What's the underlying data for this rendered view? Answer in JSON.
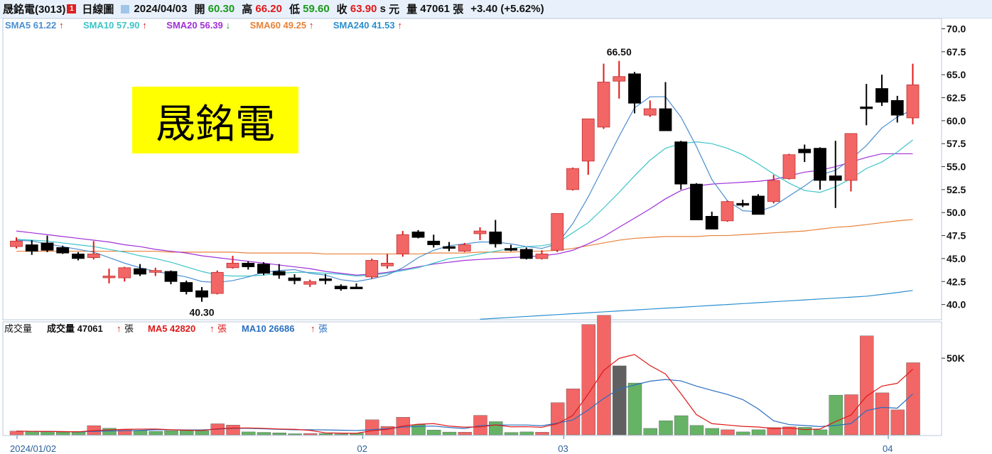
{
  "header": {
    "stock_name": "晟銘電(3013)",
    "badge": "1",
    "chart_kind": "日線圖",
    "date": "2024/04/03",
    "open_label": "開",
    "open": "60.30",
    "high_label": "高",
    "high": "66.20",
    "low_label": "低",
    "low": "59.60",
    "close_label": "收",
    "close": "63.90",
    "flag": "s",
    "currency": "元",
    "volume_label": "量",
    "volume": "47061",
    "volume_unit": "張",
    "change": "+3.40 (+5.62%)"
  },
  "watermark": "晟銘電",
  "colors": {
    "up": "#f26666",
    "down": "#000000",
    "sma5": "#4b8fd0",
    "sma10": "#3cc4c8",
    "sma20": "#a030d8",
    "sma60": "#e8823a",
    "sma240": "#2a8fd0",
    "vol_up": "#f26666",
    "vol_down": "#66b366",
    "vol_ma5": "#e01818",
    "vol_ma10": "#2a6fc0",
    "watermark_bg": "#ffff00"
  },
  "legend": [
    {
      "label": "SMA5 61.22",
      "arrow": "↑",
      "color": "#4b8fd0"
    },
    {
      "label": "SMA10 57.90",
      "arrow": "↑",
      "color": "#3cc4c8"
    },
    {
      "label": "SMA20 56.39",
      "arrow": "↓",
      "color": "#a030d8"
    },
    {
      "label": "SMA60 49.25",
      "arrow": "↑",
      "color": "#e8823a"
    },
    {
      "label": "SMA240 41.53",
      "arrow": "↑",
      "color": "#2a8fd0"
    }
  ],
  "volume_legend": {
    "title": "成交量",
    "vol": "成交量 47061",
    "vol_unit": "張",
    "ma5": "MA5 42820",
    "ma5_unit": "張",
    "ma10": "MA10 26686",
    "ma10_unit": "張",
    "arrow": "↑"
  },
  "chart_data": {
    "type": "candlestick",
    "ylim": [
      38.5,
      70.5
    ],
    "yticks": [
      "70.0",
      "67.5",
      "65.0",
      "62.5",
      "60.0",
      "57.5",
      "55.0",
      "52.5",
      "50.0",
      "47.5",
      "45.0",
      "42.5",
      "40.0"
    ],
    "x_labels": [
      {
        "label": "2024/01/02",
        "index": 0
      },
      {
        "label": "02",
        "index": 22
      },
      {
        "label": "03",
        "index": 35
      },
      {
        "label": "04",
        "index": 56
      }
    ],
    "annotations": [
      {
        "text": "66.50",
        "index": 39
      },
      {
        "text": "40.30",
        "index": 12
      }
    ],
    "volume_ylim": [
      0,
      70000
    ],
    "volume_ticks": [
      "50K"
    ],
    "candles": [
      [
        46.3,
        47.3,
        46.1,
        46.9
      ],
      [
        46.5,
        47.0,
        45.4,
        45.8
      ],
      [
        46.7,
        47.5,
        45.7,
        45.9
      ],
      [
        46.2,
        46.4,
        45.5,
        45.6
      ],
      [
        45.5,
        45.7,
        44.8,
        45.0
      ],
      [
        45.1,
        46.9,
        44.9,
        45.5
      ],
      [
        43.0,
        43.9,
        42.3,
        43.1
      ],
      [
        42.9,
        44.1,
        42.5,
        44.0
      ],
      [
        43.9,
        44.4,
        43.1,
        43.3
      ],
      [
        43.5,
        44.0,
        43.1,
        43.7
      ],
      [
        43.6,
        43.7,
        42.2,
        42.5
      ],
      [
        42.4,
        42.6,
        41.1,
        41.4
      ],
      [
        41.5,
        41.9,
        40.3,
        40.8
      ],
      [
        41.2,
        43.7,
        41.1,
        43.5
      ],
      [
        44.0,
        45.3,
        43.9,
        44.5
      ],
      [
        44.5,
        44.7,
        43.8,
        44.1
      ],
      [
        44.4,
        44.6,
        43.2,
        43.4
      ],
      [
        43.6,
        44.4,
        42.8,
        43.2
      ],
      [
        42.9,
        43.3,
        42.2,
        42.6
      ],
      [
        42.2,
        42.7,
        41.9,
        42.5
      ],
      [
        42.8,
        43.3,
        42.2,
        42.6
      ],
      [
        42.0,
        42.2,
        41.5,
        41.7
      ],
      [
        41.9,
        42.3,
        41.7,
        41.8
      ],
      [
        43.0,
        45.0,
        42.8,
        44.8
      ],
      [
        44.2,
        45.5,
        43.9,
        44.5
      ],
      [
        45.5,
        48.0,
        45.2,
        47.6
      ],
      [
        47.9,
        48.1,
        47.2,
        47.3
      ],
      [
        46.9,
        47.6,
        46.2,
        46.5
      ],
      [
        46.3,
        46.8,
        45.8,
        46.2
      ],
      [
        45.8,
        46.7,
        45.7,
        46.5
      ],
      [
        47.7,
        48.4,
        47.0,
        48.0
      ],
      [
        47.9,
        49.2,
        46.2,
        46.6
      ],
      [
        46.1,
        46.5,
        45.8,
        45.9
      ],
      [
        46.0,
        46.2,
        44.9,
        45.0
      ],
      [
        45.0,
        45.9,
        44.9,
        45.5
      ],
      [
        45.9,
        49.9,
        45.7,
        49.9
      ],
      [
        52.5,
        54.9,
        52.4,
        54.8
      ],
      [
        55.6,
        60.2,
        54.1,
        60.2
      ],
      [
        59.3,
        66.2,
        59.1,
        64.2
      ],
      [
        64.3,
        66.5,
        62.4,
        64.8
      ],
      [
        65.1,
        65.3,
        60.8,
        61.9
      ],
      [
        60.6,
        62.2,
        60.4,
        61.3
      ],
      [
        61.3,
        64.2,
        58.9,
        58.9
      ],
      [
        57.7,
        57.8,
        52.5,
        53.1
      ],
      [
        53.1,
        53.2,
        49.2,
        49.2
      ],
      [
        49.6,
        50.1,
        48.3,
        48.2
      ],
      [
        49.1,
        51.3,
        49.0,
        51.2
      ],
      [
        51.0,
        51.4,
        50.6,
        50.8
      ],
      [
        51.8,
        52.0,
        49.8,
        49.8
      ],
      [
        51.2,
        54.1,
        51.0,
        53.5
      ],
      [
        53.7,
        56.4,
        53.6,
        56.3
      ],
      [
        56.9,
        57.4,
        55.5,
        56.5
      ],
      [
        57.0,
        57.1,
        52.5,
        53.5
      ],
      [
        54.0,
        57.8,
        50.5,
        53.5
      ],
      [
        53.5,
        58.6,
        52.3,
        58.6
      ],
      [
        61.5,
        64.0,
        59.5,
        61.4
      ],
      [
        63.5,
        65.0,
        61.6,
        62.0
      ],
      [
        62.2,
        62.7,
        59.8,
        60.6
      ],
      [
        60.3,
        66.2,
        59.6,
        63.9
      ]
    ],
    "volume": [
      2400,
      2200,
      2000,
      1800,
      1700,
      6000,
      4300,
      3600,
      2600,
      2300,
      2700,
      2800,
      2700,
      7200,
      6400,
      1900,
      1600,
      1300,
      700,
      900,
      900,
      600,
      1100,
      9800,
      5500,
      11500,
      6600,
      3100,
      1800,
      1700,
      12700,
      8600,
      1500,
      1900,
      1700,
      21000,
      30000,
      72000,
      78000,
      45000,
      33800,
      4200,
      9200,
      12500,
      6100,
      4200,
      3300,
      1900,
      3300,
      4700,
      5200,
      4900,
      3300,
      25900,
      26200,
      64600,
      27400,
      16300,
      47061
    ],
    "volume_up": [
      true,
      false,
      false,
      false,
      false,
      true,
      false,
      true,
      false,
      false,
      false,
      false,
      false,
      true,
      true,
      false,
      false,
      false,
      false,
      true,
      false,
      false,
      false,
      true,
      true,
      true,
      false,
      false,
      false,
      true,
      true,
      false,
      false,
      false,
      true,
      true,
      true,
      true,
      true,
      false,
      false,
      false,
      false,
      false,
      false,
      false,
      true,
      false,
      false,
      true,
      true,
      false,
      false,
      false,
      true,
      true,
      true,
      true,
      true
    ],
    "volume_neutral_index": 39,
    "sma": {
      "sma5": [
        47.0,
        46.9,
        46.6,
        46.3,
        46.0,
        45.7,
        45.1,
        44.5,
        44.0,
        43.6,
        43.3,
        43.0,
        42.5,
        42.4,
        42.6,
        43.0,
        43.5,
        43.7,
        43.8,
        43.4,
        43.2,
        42.7,
        42.5,
        42.8,
        43.2,
        44.0,
        45.1,
        45.9,
        46.4,
        46.6,
        46.8,
        46.8,
        46.6,
        46.3,
        46.1,
        46.6,
        48.8,
        51.7,
        55.0,
        58.3,
        61.4,
        62.6,
        62.6,
        60.4,
        57.2,
        53.6,
        51.3,
        50.2,
        50.1,
        50.7,
        51.8,
        52.9,
        54.1,
        54.6,
        55.8,
        57.3,
        59.2,
        60.4,
        61.2
      ],
      "sma10": [
        47.1,
        47.0,
        46.9,
        46.7,
        46.5,
        46.3,
        46.0,
        45.7,
        45.3,
        45.0,
        44.6,
        44.1,
        43.6,
        43.2,
        43.1,
        43.1,
        43.2,
        43.4,
        43.5,
        43.5,
        43.4,
        43.3,
        43.1,
        43.2,
        43.4,
        43.7,
        44.0,
        44.5,
        45.0,
        45.2,
        45.5,
        45.8,
        46.1,
        46.3,
        46.4,
        46.7,
        47.8,
        48.9,
        50.5,
        52.2,
        54.0,
        55.7,
        57.0,
        57.5,
        57.7,
        57.5,
        57.0,
        56.3,
        55.3,
        54.2,
        53.2,
        52.4,
        52.2,
        52.8,
        53.7,
        54.8,
        55.5,
        56.6,
        57.9
      ],
      "sma20": [
        48.0,
        47.8,
        47.6,
        47.4,
        47.2,
        47.0,
        46.8,
        46.5,
        46.3,
        46.0,
        45.8,
        45.6,
        45.3,
        45.1,
        44.9,
        44.7,
        44.5,
        44.3,
        44.1,
        43.9,
        43.6,
        43.4,
        43.2,
        43.3,
        43.5,
        43.8,
        44.1,
        44.4,
        44.6,
        44.8,
        44.9,
        45.0,
        45.1,
        45.2,
        45.3,
        45.5,
        45.9,
        46.6,
        47.4,
        48.4,
        49.4,
        50.4,
        51.5,
        52.4,
        52.9,
        53.1,
        53.2,
        53.3,
        53.4,
        53.6,
        54.0,
        54.4,
        54.6,
        55.0,
        55.5,
        56.0,
        56.4,
        56.4,
        56.4
      ],
      "sma60": [
        45.8,
        45.8,
        45.8,
        45.8,
        45.8,
        45.8,
        45.8,
        45.8,
        45.8,
        45.8,
        45.7,
        45.7,
        45.7,
        45.7,
        45.7,
        45.6,
        45.6,
        45.6,
        45.6,
        45.6,
        45.5,
        45.5,
        45.5,
        45.5,
        45.5,
        45.5,
        45.5,
        45.6,
        45.6,
        45.6,
        45.7,
        45.7,
        45.7,
        45.8,
        45.8,
        45.9,
        46.1,
        46.4,
        46.7,
        47.0,
        47.2,
        47.3,
        47.4,
        47.4,
        47.4,
        47.5,
        47.5,
        47.6,
        47.7,
        47.8,
        47.9,
        48.0,
        48.2,
        48.4,
        48.5,
        48.7,
        48.9,
        49.1,
        49.25
      ],
      "sma240": [
        null,
        null,
        null,
        null,
        null,
        null,
        null,
        null,
        null,
        null,
        null,
        null,
        null,
        null,
        null,
        null,
        null,
        null,
        null,
        null,
        null,
        null,
        null,
        null,
        null,
        null,
        null,
        null,
        null,
        null,
        38.4,
        38.5,
        38.6,
        38.7,
        38.8,
        38.9,
        39.0,
        39.1,
        39.2,
        39.3,
        39.4,
        39.5,
        39.6,
        39.7,
        39.8,
        39.9,
        40.0,
        40.1,
        40.2,
        40.3,
        40.4,
        40.5,
        40.6,
        40.7,
        40.8,
        40.9,
        41.1,
        41.3,
        41.53
      ]
    },
    "volume_ma5": [
      2400,
      2300,
      2200,
      2100,
      2000,
      2700,
      3200,
      3600,
      3700,
      3800,
      3300,
      3000,
      2800,
      3900,
      4400,
      4500,
      4200,
      3800,
      3600,
      2900,
      1300,
      1100,
      1000,
      2700,
      3600,
      5700,
      6900,
      7300,
      5700,
      5000,
      5200,
      6500,
      5200,
      5300,
      4900,
      7200,
      12600,
      26600,
      42000,
      49900,
      52400,
      45200,
      39700,
      26900,
      13200,
      7300,
      6400,
      5500,
      5100,
      4100,
      4500,
      3400,
      3800,
      8600,
      12900,
      25100,
      31800,
      33600,
      42820
    ],
    "volume_ma10": [
      2400,
      2300,
      2200,
      2100,
      2000,
      2200,
      2500,
      2700,
      2900,
      3300,
      3300,
      3200,
      3200,
      3700,
      4200,
      4200,
      3900,
      3600,
      3300,
      3300,
      3200,
      3000,
      2800,
      3300,
      4000,
      5100,
      5500,
      5700,
      4800,
      4100,
      6000,
      6400,
      6400,
      6400,
      5900,
      7600,
      9700,
      16200,
      23700,
      29900,
      32500,
      35000,
      36100,
      35200,
      31800,
      29000,
      26400,
      23000,
      16900,
      9100,
      6700,
      6100,
      5400,
      6100,
      7300,
      15800,
      17900,
      17400,
      26686
    ]
  }
}
